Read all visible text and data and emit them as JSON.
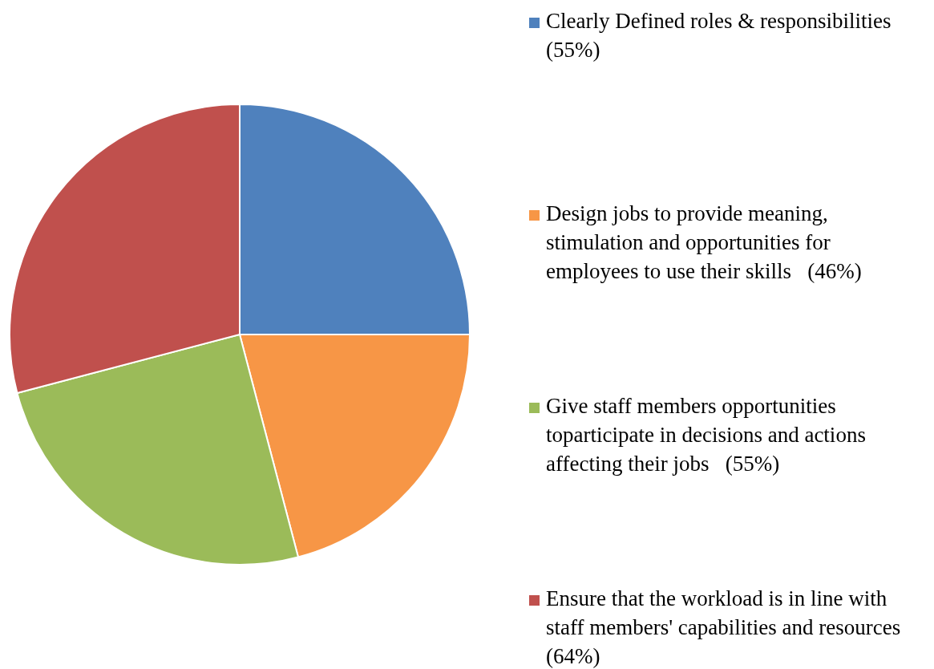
{
  "chart_data": {
    "type": "pie",
    "categories": [
      "Clearly Defined roles & responsibilities   (55%)",
      "Design jobs to provide meaning, stimulation and opportunities for employees to use their skills   (46%)",
      "Give staff members opportunities toparticipate in decisions and actions affecting their jobs   (55%)",
      "Ensure that the workload is in line with staff members' capabilities and resources   (64%)"
    ],
    "values": [
      55,
      46,
      55,
      64
    ],
    "colors": [
      "#4f81bd",
      "#f79646",
      "#9bbb59",
      "#c0504d"
    ],
    "legend": "right"
  }
}
